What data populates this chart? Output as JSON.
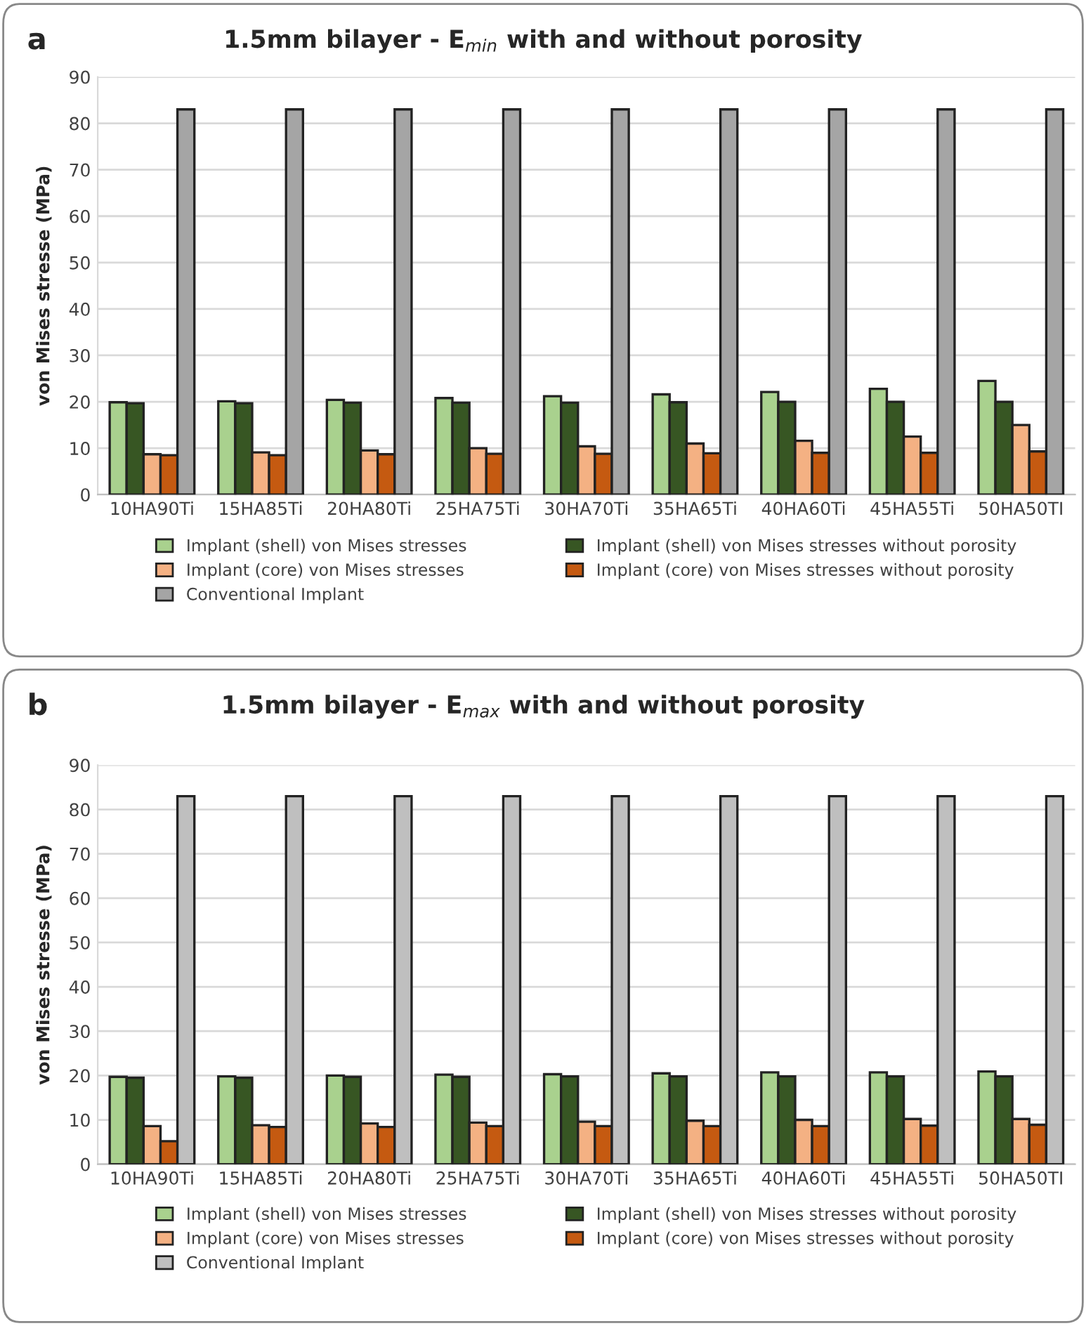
{
  "chart_data": [
    {
      "type": "bar",
      "title": "1.5mm bilayer - E$_{min}$ with and without porosity",
      "ylabel": "von Mises stresse (MPa)",
      "annotations": [
        "a"
      ],
      "categories": [
        "10HA90Ti",
        "15HA85Ti",
        "20HA80Ti",
        "25HA75Ti",
        "30HA70Ti",
        "35HA65Ti",
        "40HA60Ti",
        "45HA55Ti",
        "50HA50TI"
      ],
      "series": [
        {
          "name": "Implant (shell) von Mises stresses",
          "color": "#a9d18e",
          "values": [
            19.9,
            20.1,
            20.4,
            20.8,
            21.2,
            21.6,
            22.1,
            22.8,
            24.5
          ]
        },
        {
          "name": "Implant (shell) von Mises stresses without porosity",
          "color": "#375623",
          "values": [
            19.7,
            19.7,
            19.8,
            19.8,
            19.8,
            19.9,
            20,
            20,
            20
          ]
        },
        {
          "name": "Implant (core) von Mises stresses",
          "color": "#f4b183",
          "values": [
            8.7,
            9.1,
            9.5,
            10,
            10.4,
            11,
            11.6,
            12.5,
            15
          ]
        },
        {
          "name": "Implant (core) von Mises stresses without porosity",
          "color": "#c55a11",
          "values": [
            8.5,
            8.5,
            8.7,
            8.8,
            8.8,
            8.9,
            9,
            9,
            9.3
          ]
        },
        {
          "name": "Conventional Implant",
          "color": "#a5a5a5",
          "values": [
            83,
            83,
            83,
            83,
            83,
            83,
            83,
            83,
            83
          ]
        }
      ],
      "ylim": [
        0,
        90
      ],
      "yticks": [
        0,
        10,
        20,
        30,
        40,
        50,
        60,
        70,
        80,
        90
      ],
      "grid": "y",
      "legend": "bottom"
    },
    {
      "type": "bar",
      "title": "1.5mm bilayer - E$_{max}$ with and without porosity",
      "ylabel": "von Mises stresse (MPa)",
      "annotations": [
        "b"
      ],
      "categories": [
        "10HA90Ti",
        "15HA85Ti",
        "20HA80Ti",
        "25HA75Ti",
        "30HA70Ti",
        "35HA65Ti",
        "40HA60Ti",
        "45HA55Ti",
        "50HA50TI"
      ],
      "series": [
        {
          "name": "Implant (shell) von Mises stresses",
          "color": "#a9d18e",
          "values": [
            19.7,
            19.8,
            20,
            20.2,
            20.3,
            20.5,
            20.7,
            20.7,
            20.9
          ]
        },
        {
          "name": "Implant (shell) von Mises stresses without porosity",
          "color": "#375623",
          "values": [
            19.5,
            19.5,
            19.7,
            19.7,
            19.8,
            19.8,
            19.8,
            19.8,
            19.8
          ]
        },
        {
          "name": "Implant (core) von Mises stresses",
          "color": "#f4b183",
          "values": [
            8.6,
            8.8,
            9.2,
            9.4,
            9.6,
            9.8,
            10,
            10.2,
            10.2
          ]
        },
        {
          "name": "Implant (core) von Mises stresses without porosity",
          "color": "#c55a11",
          "values": [
            5.2,
            8.4,
            8.4,
            8.6,
            8.6,
            8.6,
            8.6,
            8.7,
            8.9
          ]
        },
        {
          "name": "Conventional Implant",
          "color": "#bfbfbf",
          "values": [
            83,
            83,
            83,
            83,
            83,
            83,
            83,
            83,
            83
          ]
        }
      ],
      "ylim": [
        0,
        90
      ],
      "yticks": [
        0,
        10,
        20,
        30,
        40,
        50,
        60,
        70,
        80,
        90
      ],
      "grid": "y",
      "legend": "bottom"
    }
  ]
}
